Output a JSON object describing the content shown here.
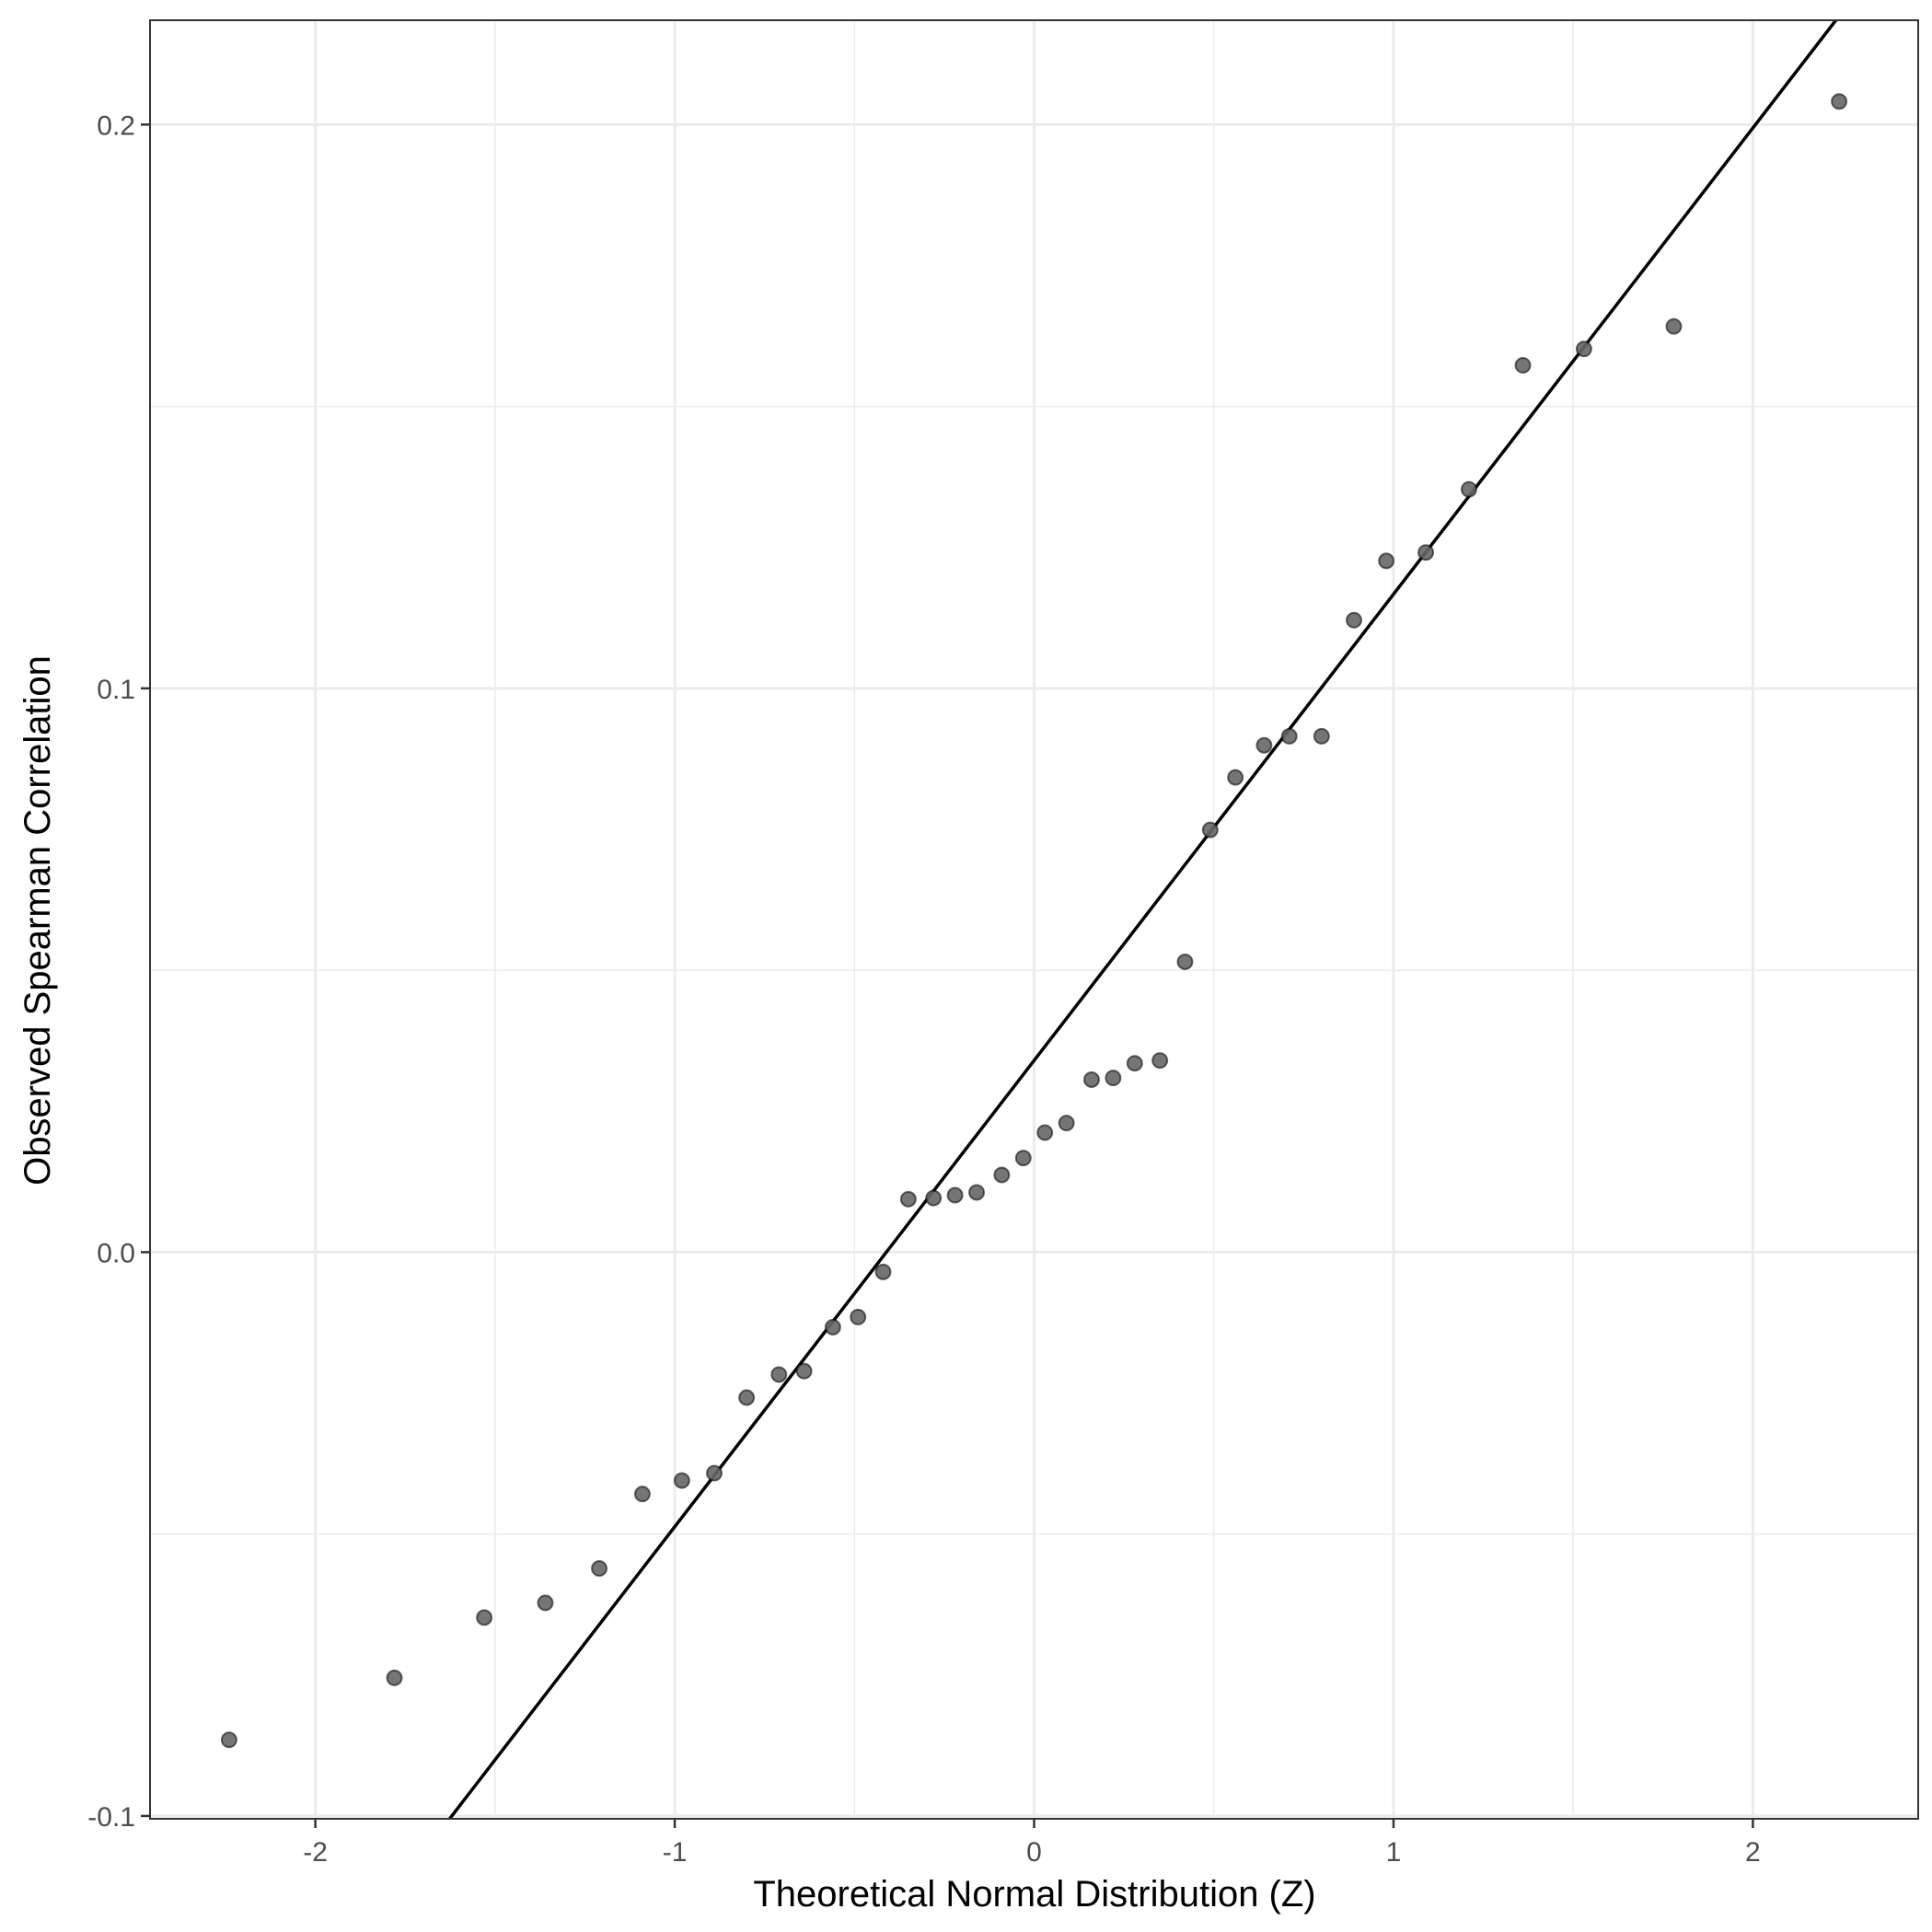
{
  "chart_data": {
    "type": "scatter",
    "title": "",
    "xlabel": "Theoretical Normal Distribution (Z)",
    "ylabel": "Observed Spearman Correlation",
    "xlim": [
      -2.46,
      2.46
    ],
    "ylim": [
      -0.1005,
      0.2185
    ],
    "x_ticks": [
      -2,
      -1,
      0,
      1,
      2
    ],
    "x_tick_labels": [
      "-2",
      "-1",
      "0",
      "1",
      "2"
    ],
    "y_ticks": [
      -0.1,
      0.0,
      0.1,
      0.2
    ],
    "y_tick_labels": [
      "-0.1",
      "0.0",
      "0.1",
      "0.2"
    ],
    "grid": true,
    "reference_line": {
      "intercept": 0.034,
      "slope": 0.0827
    },
    "series": [
      {
        "points": [
          {
            "x": -2.24,
            "y": -0.0865
          },
          {
            "x": -1.78,
            "y": -0.0755
          },
          {
            "x": -1.53,
            "y": -0.0648
          },
          {
            "x": -1.36,
            "y": -0.0622
          },
          {
            "x": -1.21,
            "y": -0.0561
          },
          {
            "x": -1.09,
            "y": -0.0429
          },
          {
            "x": -0.98,
            "y": -0.0405
          },
          {
            "x": -0.89,
            "y": -0.0392
          },
          {
            "x": -0.8,
            "y": -0.0258
          },
          {
            "x": -0.71,
            "y": -0.0217
          },
          {
            "x": -0.64,
            "y": -0.0211
          },
          {
            "x": -0.56,
            "y": -0.0133
          },
          {
            "x": -0.49,
            "y": -0.0115
          },
          {
            "x": -0.42,
            "y": -0.0035
          },
          {
            "x": -0.35,
            "y": 0.0094
          },
          {
            "x": -0.28,
            "y": 0.0096
          },
          {
            "x": -0.22,
            "y": 0.0101
          },
          {
            "x": -0.16,
            "y": 0.0106
          },
          {
            "x": -0.09,
            "y": 0.0137
          },
          {
            "x": -0.03,
            "y": 0.0167
          },
          {
            "x": 0.03,
            "y": 0.0212
          },
          {
            "x": 0.09,
            "y": 0.0229
          },
          {
            "x": 0.16,
            "y": 0.0306
          },
          {
            "x": 0.22,
            "y": 0.0309
          },
          {
            "x": 0.28,
            "y": 0.0335
          },
          {
            "x": 0.35,
            "y": 0.034
          },
          {
            "x": 0.42,
            "y": 0.0515
          },
          {
            "x": 0.49,
            "y": 0.0749
          },
          {
            "x": 0.56,
            "y": 0.0842
          },
          {
            "x": 0.64,
            "y": 0.0899
          },
          {
            "x": 0.71,
            "y": 0.0915
          },
          {
            "x": 0.8,
            "y": 0.0915
          },
          {
            "x": 0.89,
            "y": 0.1121
          },
          {
            "x": 0.98,
            "y": 0.1226
          },
          {
            "x": 1.09,
            "y": 0.1241
          },
          {
            "x": 1.21,
            "y": 0.1353
          },
          {
            "x": 1.36,
            "y": 0.1573
          },
          {
            "x": 1.53,
            "y": 0.1602
          },
          {
            "x": 1.78,
            "y": 0.1642
          },
          {
            "x": 2.24,
            "y": 0.2041
          }
        ]
      }
    ]
  }
}
